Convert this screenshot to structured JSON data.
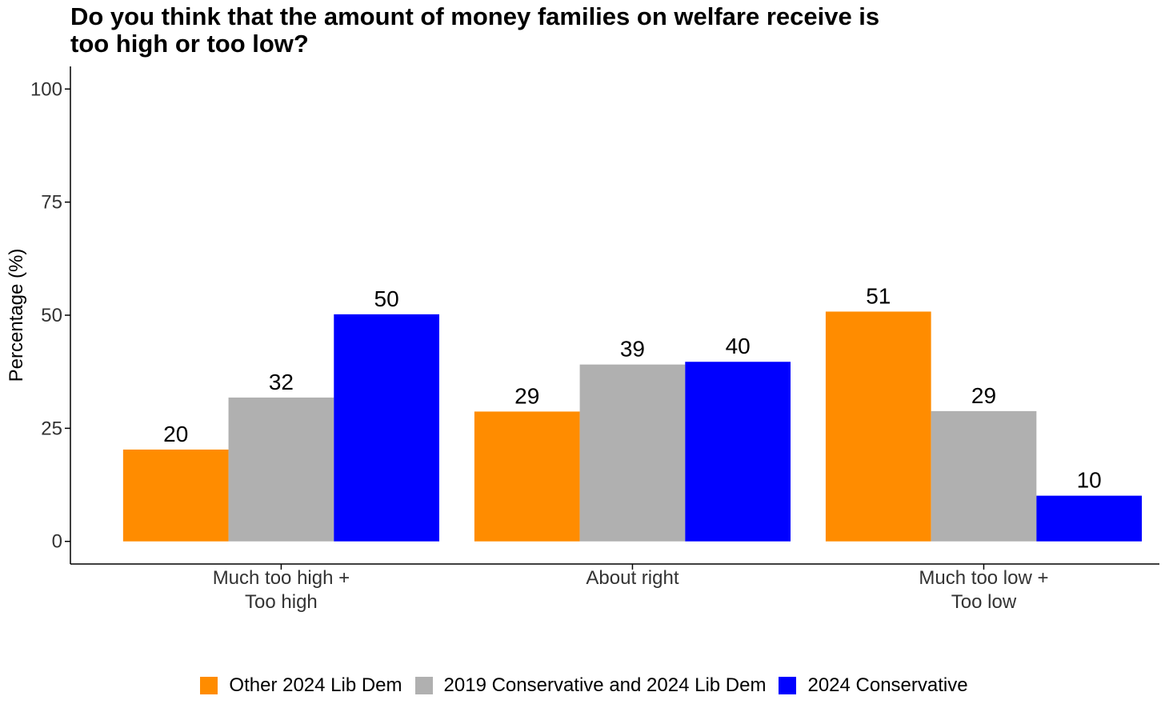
{
  "chart_data": {
    "type": "bar",
    "title_lines": [
      "Do you think that the amount of money families on welfare receive is",
      "too high or too low?"
    ],
    "xlabel": "",
    "ylabel": "Percentage (%)",
    "ylim": [
      -5,
      105
    ],
    "yticks": [
      0,
      25,
      50,
      75,
      100
    ],
    "categories": [
      [
        "Much too high +",
        "Too high"
      ],
      [
        "About right"
      ],
      [
        "Much too low +",
        "Too low"
      ]
    ],
    "series": [
      {
        "name": "Other 2024 Lib Dem",
        "color": "#FF8C00",
        "values": [
          20.3,
          28.7,
          50.8
        ]
      },
      {
        "name": "2019 Conservative and 2024 Lib Dem",
        "color": "#B0B0B0",
        "values": [
          31.8,
          39.1,
          28.8
        ]
      },
      {
        "name": "2024 Conservative",
        "color": "#0000FF",
        "values": [
          50.2,
          39.7,
          10.1
        ]
      }
    ],
    "data_labels": [
      [
        "20",
        "29",
        "51"
      ],
      [
        "32",
        "39",
        "29"
      ],
      [
        "50",
        "40",
        "10"
      ]
    ],
    "grid": false,
    "legend_position": "bottom"
  }
}
